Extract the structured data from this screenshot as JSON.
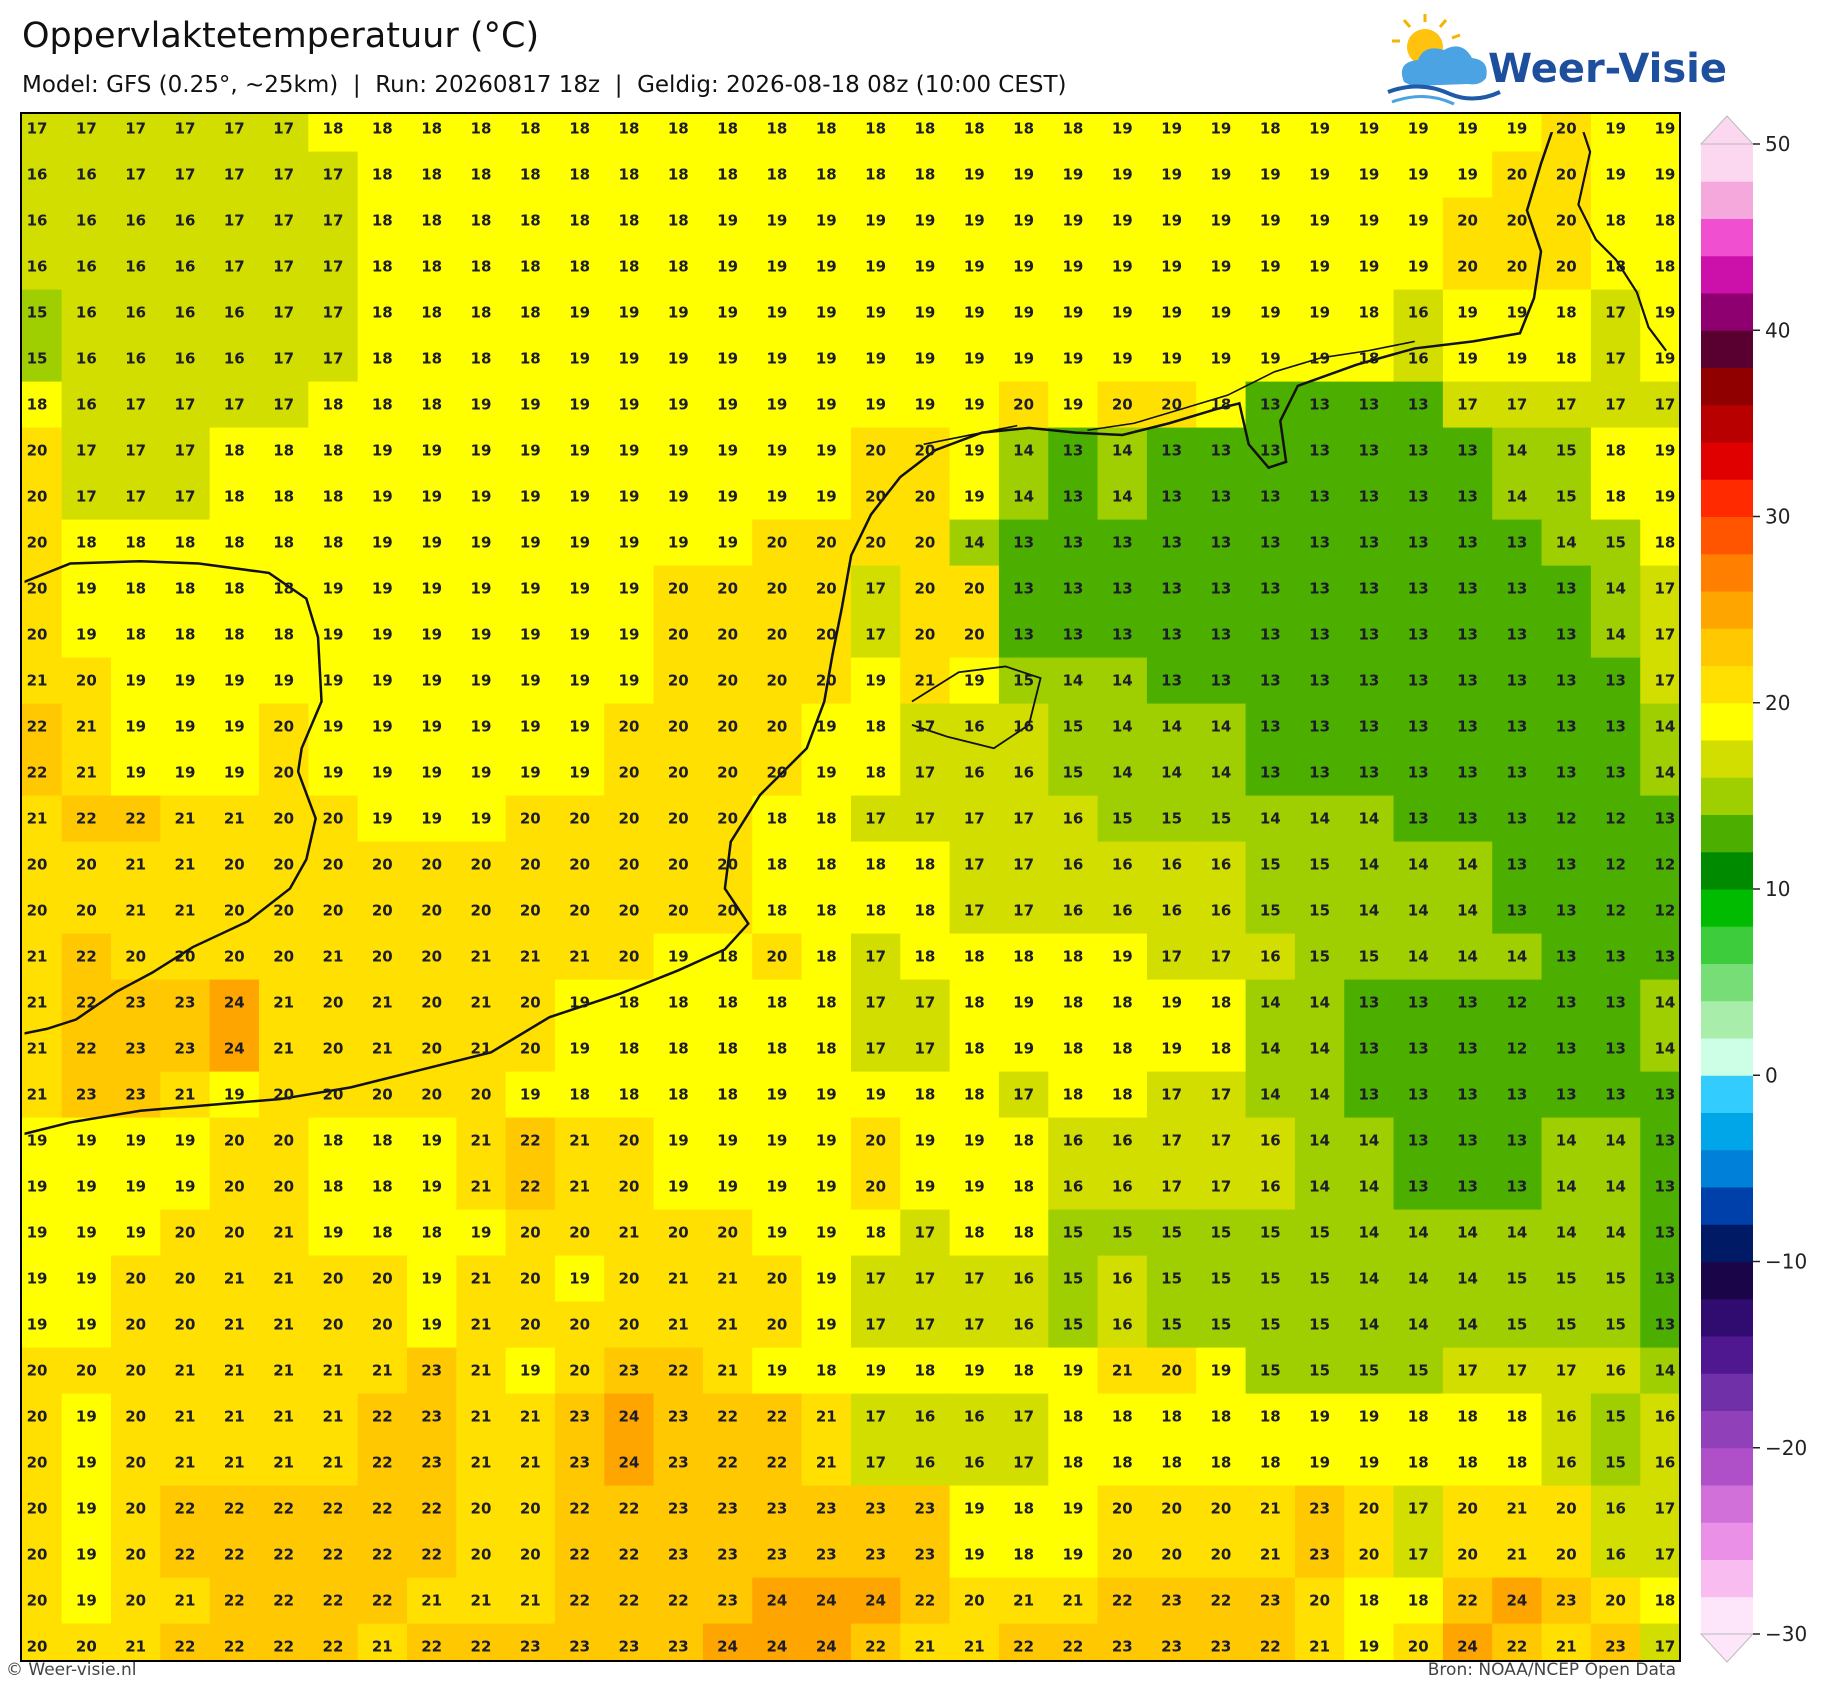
{
  "header": {
    "title": "Oppervlaktetemperatuur (°C)",
    "subtitle": "Model: GFS (0.25°, ~25km)  |  Run: 20260817 18z  |  Geldig: 2026-08-18 08z (10:00 CEST)"
  },
  "logo": {
    "text": "Weer-Visie"
  },
  "grid": {
    "rows": [
      [
        17,
        17,
        17,
        17,
        17,
        17,
        18,
        18,
        18,
        18,
        18,
        18,
        18,
        18,
        18,
        18,
        18,
        18,
        18,
        18,
        18,
        18,
        19,
        19,
        19,
        18,
        19,
        19,
        19,
        19,
        19,
        20,
        19,
        19
      ],
      [
        16,
        16,
        17,
        17,
        17,
        17,
        17,
        18,
        18,
        18,
        18,
        18,
        18,
        18,
        18,
        18,
        18,
        18,
        18,
        19,
        19,
        19,
        19,
        19,
        19,
        19,
        19,
        19,
        19,
        19,
        20,
        20,
        19,
        19
      ],
      [
        16,
        16,
        16,
        16,
        17,
        17,
        17,
        18,
        18,
        18,
        18,
        18,
        18,
        18,
        19,
        19,
        19,
        19,
        19,
        19,
        19,
        19,
        19,
        19,
        19,
        19,
        19,
        19,
        19,
        20,
        20,
        20,
        18,
        18
      ],
      [
        16,
        16,
        16,
        16,
        17,
        17,
        17,
        18,
        18,
        18,
        18,
        18,
        18,
        18,
        19,
        19,
        19,
        19,
        19,
        19,
        19,
        19,
        19,
        19,
        19,
        19,
        19,
        19,
        19,
        20,
        20,
        20,
        18,
        18
      ],
      [
        15,
        16,
        16,
        16,
        16,
        17,
        17,
        18,
        18,
        18,
        18,
        19,
        19,
        19,
        19,
        19,
        19,
        19,
        19,
        19,
        19,
        19,
        19,
        19,
        19,
        19,
        19,
        18,
        16,
        19,
        19,
        18,
        17,
        19
      ],
      [
        15,
        16,
        16,
        16,
        16,
        17,
        17,
        18,
        18,
        18,
        18,
        19,
        19,
        19,
        19,
        19,
        19,
        19,
        19,
        19,
        19,
        19,
        19,
        19,
        19,
        19,
        19,
        18,
        16,
        19,
        19,
        18,
        17,
        19
      ],
      [
        18,
        16,
        17,
        17,
        17,
        17,
        18,
        18,
        18,
        19,
        19,
        19,
        19,
        19,
        19,
        19,
        19,
        19,
        19,
        19,
        20,
        19,
        20,
        20,
        18,
        13,
        13,
        13,
        13,
        17,
        17,
        17,
        17,
        17
      ],
      [
        20,
        17,
        17,
        17,
        18,
        18,
        18,
        19,
        19,
        19,
        19,
        19,
        19,
        19,
        19,
        19,
        19,
        20,
        20,
        19,
        14,
        13,
        14,
        13,
        13,
        13,
        13,
        13,
        13,
        13,
        14,
        15,
        18,
        19
      ],
      [
        20,
        17,
        17,
        17,
        18,
        18,
        18,
        19,
        19,
        19,
        19,
        19,
        19,
        19,
        19,
        19,
        19,
        20,
        20,
        19,
        14,
        13,
        14,
        13,
        13,
        13,
        13,
        13,
        13,
        13,
        14,
        15,
        18,
        19
      ],
      [
        20,
        18,
        18,
        18,
        18,
        18,
        18,
        19,
        19,
        19,
        19,
        19,
        19,
        19,
        19,
        20,
        20,
        20,
        20,
        14,
        13,
        13,
        13,
        13,
        13,
        13,
        13,
        13,
        13,
        13,
        13,
        14,
        15,
        18
      ],
      [
        20,
        19,
        18,
        18,
        18,
        18,
        19,
        19,
        19,
        19,
        19,
        19,
        19,
        20,
        20,
        20,
        20,
        17,
        20,
        20,
        13,
        13,
        13,
        13,
        13,
        13,
        13,
        13,
        13,
        13,
        13,
        13,
        14,
        17
      ],
      [
        20,
        19,
        18,
        18,
        18,
        18,
        19,
        19,
        19,
        19,
        19,
        19,
        19,
        20,
        20,
        20,
        20,
        17,
        20,
        20,
        13,
        13,
        13,
        13,
        13,
        13,
        13,
        13,
        13,
        13,
        13,
        13,
        14,
        17
      ],
      [
        21,
        20,
        19,
        19,
        19,
        19,
        19,
        19,
        19,
        19,
        19,
        19,
        19,
        20,
        20,
        20,
        20,
        19,
        21,
        19,
        15,
        14,
        14,
        13,
        13,
        13,
        13,
        13,
        13,
        13,
        13,
        13,
        13,
        17
      ],
      [
        22,
        21,
        19,
        19,
        19,
        20,
        19,
        19,
        19,
        19,
        19,
        19,
        20,
        20,
        20,
        20,
        19,
        18,
        17,
        16,
        16,
        15,
        14,
        14,
        14,
        13,
        13,
        13,
        13,
        13,
        13,
        13,
        13,
        14
      ],
      [
        22,
        21,
        19,
        19,
        19,
        20,
        19,
        19,
        19,
        19,
        19,
        19,
        20,
        20,
        20,
        20,
        19,
        18,
        17,
        16,
        16,
        15,
        14,
        14,
        14,
        13,
        13,
        13,
        13,
        13,
        13,
        13,
        13,
        14
      ],
      [
        21,
        22,
        22,
        21,
        21,
        20,
        20,
        19,
        19,
        19,
        20,
        20,
        20,
        20,
        20,
        18,
        18,
        17,
        17,
        17,
        17,
        16,
        15,
        15,
        15,
        14,
        14,
        14,
        13,
        13,
        13,
        12,
        12,
        13
      ],
      [
        20,
        20,
        21,
        21,
        20,
        20,
        20,
        20,
        20,
        20,
        20,
        20,
        20,
        20,
        20,
        18,
        18,
        18,
        18,
        17,
        17,
        16,
        16,
        16,
        16,
        15,
        15,
        14,
        14,
        14,
        13,
        13,
        12,
        12
      ],
      [
        20,
        20,
        21,
        21,
        20,
        20,
        20,
        20,
        20,
        20,
        20,
        20,
        20,
        20,
        20,
        18,
        18,
        18,
        18,
        17,
        17,
        16,
        16,
        16,
        16,
        15,
        15,
        14,
        14,
        14,
        13,
        13,
        12,
        12
      ],
      [
        21,
        22,
        20,
        20,
        20,
        20,
        21,
        20,
        20,
        21,
        21,
        21,
        20,
        19,
        18,
        20,
        18,
        17,
        18,
        18,
        18,
        18,
        19,
        17,
        17,
        16,
        15,
        15,
        14,
        14,
        14,
        13,
        13,
        13
      ],
      [
        21,
        22,
        23,
        23,
        24,
        21,
        20,
        21,
        20,
        21,
        20,
        19,
        18,
        18,
        18,
        18,
        18,
        17,
        17,
        18,
        19,
        18,
        18,
        19,
        18,
        14,
        14,
        13,
        13,
        13,
        12,
        13,
        13,
        14
      ],
      [
        21,
        22,
        23,
        23,
        24,
        21,
        20,
        21,
        20,
        21,
        20,
        19,
        18,
        18,
        18,
        18,
        18,
        17,
        17,
        18,
        19,
        18,
        18,
        19,
        18,
        14,
        14,
        13,
        13,
        13,
        12,
        13,
        13,
        14
      ],
      [
        21,
        23,
        23,
        21,
        19,
        20,
        20,
        20,
        20,
        20,
        19,
        18,
        18,
        18,
        18,
        19,
        19,
        19,
        18,
        18,
        17,
        18,
        18,
        17,
        17,
        14,
        14,
        13,
        13,
        13,
        13,
        13,
        13,
        13
      ],
      [
        19,
        19,
        19,
        19,
        20,
        20,
        18,
        18,
        19,
        21,
        22,
        21,
        20,
        19,
        19,
        19,
        19,
        20,
        19,
        19,
        18,
        16,
        16,
        17,
        17,
        16,
        14,
        14,
        13,
        13,
        13,
        14,
        14,
        13
      ],
      [
        19,
        19,
        19,
        19,
        20,
        20,
        18,
        18,
        19,
        21,
        22,
        21,
        20,
        19,
        19,
        19,
        19,
        20,
        19,
        19,
        18,
        16,
        16,
        17,
        17,
        16,
        14,
        14,
        13,
        13,
        13,
        14,
        14,
        13
      ],
      [
        19,
        19,
        19,
        20,
        20,
        21,
        19,
        18,
        18,
        19,
        20,
        20,
        21,
        20,
        20,
        19,
        19,
        18,
        17,
        18,
        18,
        15,
        15,
        15,
        15,
        15,
        15,
        14,
        14,
        14,
        14,
        14,
        14,
        13
      ],
      [
        19,
        19,
        20,
        20,
        21,
        21,
        20,
        20,
        19,
        21,
        20,
        19,
        20,
        21,
        21,
        20,
        19,
        17,
        17,
        17,
        16,
        15,
        16,
        15,
        15,
        15,
        15,
        14,
        14,
        14,
        15,
        15,
        15,
        13
      ],
      [
        19,
        19,
        20,
        20,
        21,
        21,
        20,
        20,
        19,
        21,
        20,
        20,
        20,
        21,
        21,
        20,
        19,
        17,
        17,
        17,
        16,
        15,
        16,
        15,
        15,
        15,
        15,
        14,
        14,
        14,
        15,
        15,
        15,
        13
      ],
      [
        20,
        20,
        20,
        21,
        21,
        21,
        21,
        21,
        23,
        21,
        19,
        20,
        23,
        22,
        21,
        19,
        18,
        19,
        18,
        19,
        18,
        19,
        21,
        20,
        19,
        15,
        15,
        15,
        15,
        17,
        17,
        17,
        16,
        14
      ],
      [
        20,
        19,
        20,
        21,
        21,
        21,
        21,
        22,
        23,
        21,
        21,
        23,
        24,
        23,
        22,
        22,
        21,
        17,
        16,
        16,
        17,
        18,
        18,
        18,
        18,
        18,
        19,
        19,
        18,
        18,
        18,
        16,
        15,
        16
      ],
      [
        20,
        19,
        20,
        21,
        21,
        21,
        21,
        22,
        23,
        21,
        21,
        23,
        24,
        23,
        22,
        22,
        21,
        17,
        16,
        16,
        17,
        18,
        18,
        18,
        18,
        18,
        19,
        19,
        18,
        18,
        18,
        16,
        15,
        16
      ],
      [
        20,
        19,
        20,
        22,
        22,
        22,
        22,
        22,
        22,
        20,
        20,
        22,
        22,
        23,
        23,
        23,
        23,
        23,
        23,
        19,
        18,
        19,
        20,
        20,
        20,
        21,
        23,
        20,
        17,
        20,
        21,
        20,
        16,
        17
      ],
      [
        20,
        19,
        20,
        22,
        22,
        22,
        22,
        22,
        22,
        20,
        20,
        22,
        22,
        23,
        23,
        23,
        23,
        23,
        23,
        19,
        18,
        19,
        20,
        20,
        20,
        21,
        23,
        20,
        17,
        20,
        21,
        20,
        16,
        17
      ],
      [
        20,
        19,
        20,
        21,
        22,
        22,
        22,
        22,
        21,
        21,
        21,
        22,
        22,
        22,
        23,
        24,
        24,
        24,
        22,
        20,
        21,
        21,
        22,
        23,
        22,
        23,
        20,
        18,
        18,
        22,
        24,
        23,
        20,
        18
      ],
      [
        20,
        20,
        21,
        22,
        22,
        22,
        22,
        21,
        22,
        22,
        23,
        23,
        23,
        23,
        24,
        24,
        24,
        22,
        21,
        21,
        22,
        22,
        23,
        23,
        23,
        22,
        21,
        19,
        20,
        24,
        22,
        21,
        23,
        17
      ]
    ]
  },
  "colorbar": {
    "lim": [
      -30,
      50
    ],
    "ticks": [
      50,
      40,
      30,
      20,
      10,
      0,
      {
        "value": -10,
        "label": "−10"
      },
      {
        "value": -20,
        "label": "−20"
      },
      {
        "value": -30,
        "label": "−30"
      }
    ],
    "colors": [
      "#fde6f9",
      "#f9bcf1",
      "#ea90e6",
      "#d070d8",
      "#b050c8",
      "#9040b8",
      "#7030a8",
      "#501890",
      "#300c70",
      "#1a0548",
      "#001a66",
      "#0040aa",
      "#0080d8",
      "#00a6e8",
      "#33ccff",
      "#ccffe6",
      "#a8eeaa",
      "#77dd77",
      "#3ccc3c",
      "#00bb00",
      "#008a00",
      "#4caf00",
      "#9fcf00",
      "#d2de00",
      "#ffff00",
      "#ffe000",
      "#ffc800",
      "#ffa500",
      "#ff7f00",
      "#ff5500",
      "#ff2a00",
      "#e00000",
      "#b80000",
      "#900000",
      "#5a0030",
      "#8e0070",
      "#cc10aa",
      "#f050d0",
      "#f5a8dc",
      "#fbd7f0"
    ]
  },
  "footer": {
    "left": "© Weer-visie.nl",
    "right": "Bron: NOAA/NCEP Open Data"
  }
}
